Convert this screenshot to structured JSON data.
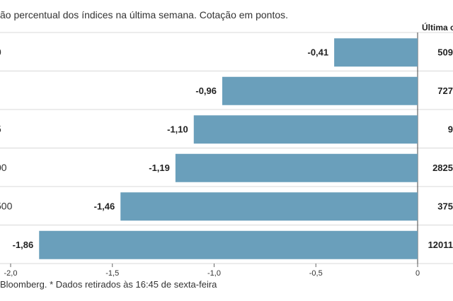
{
  "subtitle": "ão percentual dos índices na última semana. Cotação em pontos.",
  "column_header": "Última c",
  "source": "Bloomberg.  * Dados retirados às 16:45 de sexta-feira",
  "colors": {
    "bar": "#6a9fbb",
    "grid": "#d8d8d8",
    "separator": "#444444"
  },
  "chart_data": {
    "type": "bar",
    "orientation": "horizontal",
    "title": "",
    "xlabel": "",
    "ylabel": "",
    "xlim": [
      -2.0,
      0
    ],
    "x_ticks": [
      "-2,0",
      "-1,5",
      "-1,0",
      "-0,5",
      "0"
    ],
    "categories": [
      "0",
      "",
      "5",
      "00",
      "500",
      ""
    ],
    "values": [
      -0.41,
      -0.96,
      -1.1,
      -1.19,
      -1.46,
      -1.86
    ],
    "value_labels": [
      "-0,41",
      "-0,96",
      "-1,10",
      "-1,19",
      "-1,46",
      "-1,86"
    ],
    "last_quote_labels": [
      "509",
      "727",
      "9",
      "2825",
      "375",
      "12011"
    ],
    "grid": true,
    "legend": "none"
  }
}
